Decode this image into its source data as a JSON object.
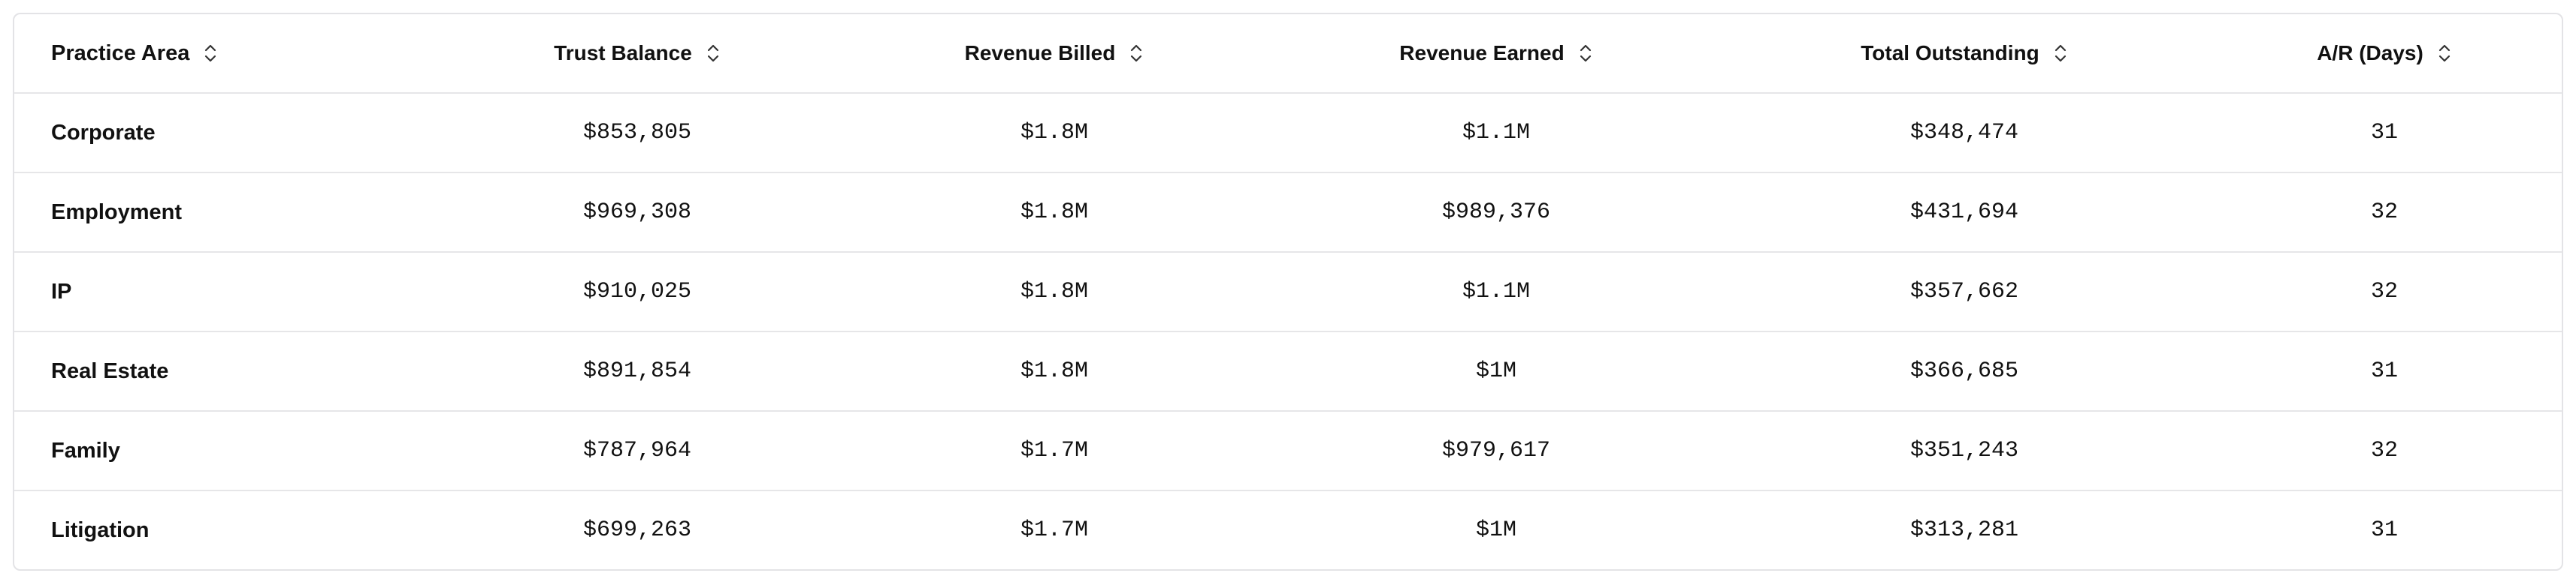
{
  "table": {
    "columns": [
      "Practice Area",
      "Trust Balance",
      "Revenue Billed",
      "Revenue Earned",
      "Total Outstanding",
      "A/R (Days)"
    ],
    "rows": [
      [
        "Corporate",
        "$853,805",
        "$1.8M",
        "$1.1M",
        "$348,474",
        "31"
      ],
      [
        "Employment",
        "$969,308",
        "$1.8M",
        "$989,376",
        "$431,694",
        "32"
      ],
      [
        "IP",
        "$910,025",
        "$1.8M",
        "$1.1M",
        "$357,662",
        "32"
      ],
      [
        "Real Estate",
        "$891,854",
        "$1.8M",
        "$1M",
        "$366,685",
        "31"
      ],
      [
        "Family",
        "$787,964",
        "$1.7M",
        "$979,617",
        "$351,243",
        "32"
      ],
      [
        "Litigation",
        "$699,263",
        "$1.7M",
        "$1M",
        "$313,281",
        "31"
      ]
    ]
  }
}
